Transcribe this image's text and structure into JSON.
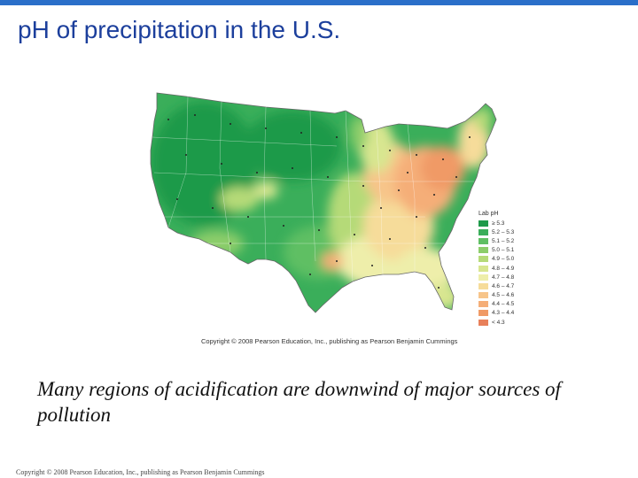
{
  "slide": {
    "title": "pH of precipitation in the U.S.",
    "caption": "Many regions of acidification are downwind of major sources of pollution",
    "copyright": "Copyright © 2008 Pearson Education, Inc., publishing as Pearson Benjamin Cummings"
  },
  "map": {
    "credit": "Copyright © 2008 Pearson Education, Inc., publishing as Pearson Benjamin Cummings",
    "legend": {
      "title": "Lab pH",
      "items": [
        {
          "label": "≥ 5.3",
          "color": "#1f9a4a"
        },
        {
          "label": "5.2 – 5.3",
          "color": "#3aae5a"
        },
        {
          "label": "5.1 – 5.2",
          "color": "#5fbf63"
        },
        {
          "label": "5.0 – 5.1",
          "color": "#8ccd6a"
        },
        {
          "label": "4.9 – 5.0",
          "color": "#b5da78"
        },
        {
          "label": "4.8 – 4.9",
          "color": "#d8e690"
        },
        {
          "label": "4.7 – 4.8",
          "color": "#eeeeaa"
        },
        {
          "label": "4.6 – 4.7",
          "color": "#f6dc9a"
        },
        {
          "label": "4.5 – 4.6",
          "color": "#f7c58a"
        },
        {
          "label": "4.4 – 4.5",
          "color": "#f5ae78"
        },
        {
          "label": "4.3 – 4.4",
          "color": "#f09a66"
        },
        {
          "label": "< 4.3",
          "color": "#e8805a"
        }
      ]
    }
  },
  "colors": {
    "title": "#1c3f9c",
    "accent_line": "#2a6fc9"
  }
}
